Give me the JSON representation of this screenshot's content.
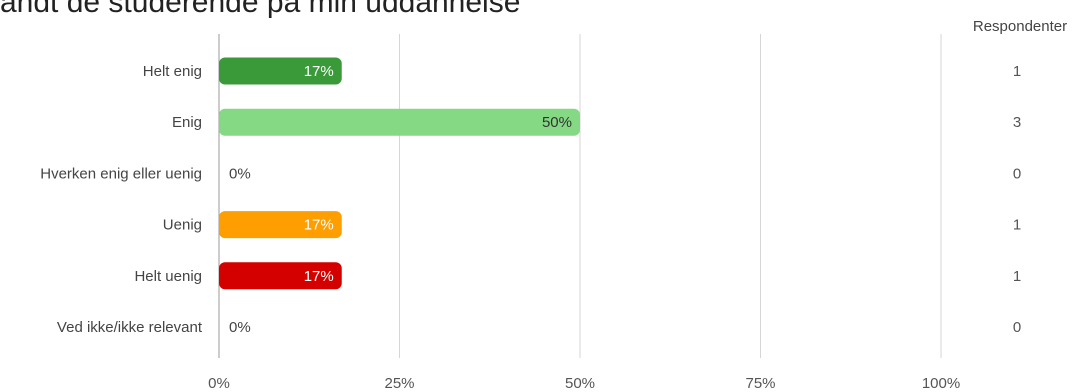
{
  "chart_data": {
    "type": "bar",
    "orientation": "horizontal",
    "title": "andt de studerende på min uddannelse",
    "categories": [
      "Helt enig",
      "Enig",
      "Hverken enig eller uenig",
      "Uenig",
      "Helt uenig",
      "Ved ikke/ikke relevant"
    ],
    "values": [
      17,
      50,
      0,
      17,
      17,
      0
    ],
    "value_labels": [
      "17%",
      "50%",
      "0%",
      "17%",
      "17%",
      "0%"
    ],
    "respondents": [
      1,
      3,
      0,
      1,
      1,
      0
    ],
    "respondents_header": "Respondenter",
    "colors": [
      "#3a9a3a",
      "#85d985",
      "#cccccc",
      "#ff9e00",
      "#d40000",
      "#cccccc"
    ],
    "xlim": [
      0,
      100
    ],
    "xticks": [
      0,
      25,
      50,
      75,
      100
    ],
    "xtick_labels": [
      "0%",
      "25%",
      "50%",
      "75%",
      "100%"
    ],
    "grid": true,
    "legend": "none"
  }
}
